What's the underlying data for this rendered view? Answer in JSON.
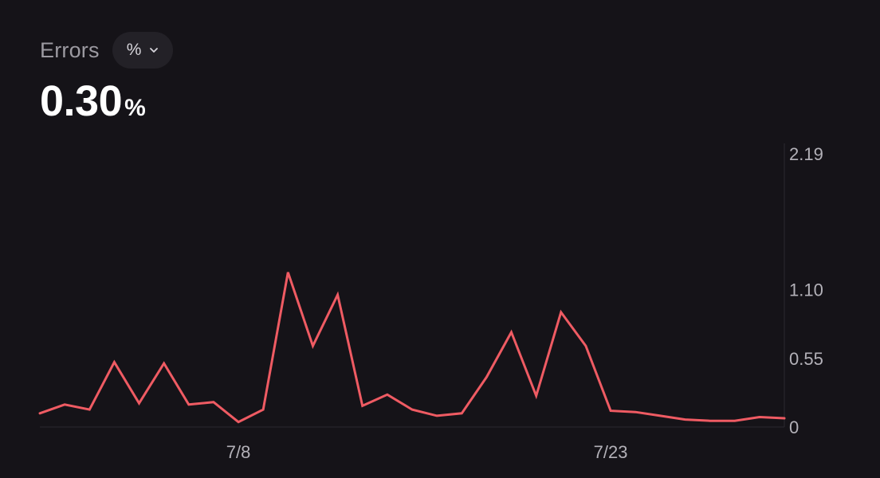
{
  "header": {
    "metric_label": "Errors",
    "unit_selector": "%",
    "value": "0.30",
    "value_unit": "%"
  },
  "colors": {
    "background": "#151318",
    "line": "#ef5b63",
    "axis": "#2c2a30"
  },
  "chart_data": {
    "type": "line",
    "title": "",
    "xlabel": "",
    "ylabel": "",
    "ylim": [
      0,
      2.19
    ],
    "y_ticks": [
      "2.19",
      "1.10",
      "0.55",
      "0"
    ],
    "y_tick_values": [
      2.19,
      1.1,
      0.55,
      0
    ],
    "x_ticks": [
      "7/8",
      "7/23"
    ],
    "x_tick_dates": [
      "7/8",
      "7/23"
    ],
    "x": [
      "6/30",
      "7/1",
      "7/2",
      "7/3",
      "7/4",
      "7/5",
      "7/6",
      "7/7",
      "7/8",
      "7/9",
      "7/10",
      "7/11",
      "7/12",
      "7/13",
      "7/14",
      "7/15",
      "7/16",
      "7/17",
      "7/18",
      "7/19",
      "7/20",
      "7/21",
      "7/22",
      "7/23",
      "7/24",
      "7/25",
      "7/26",
      "7/27",
      "7/28",
      "7/29",
      "7/30"
    ],
    "series": [
      {
        "values": [
          0.11,
          0.18,
          0.14,
          0.52,
          0.19,
          0.51,
          0.18,
          0.2,
          0.04,
          0.14,
          1.24,
          0.65,
          1.06,
          0.17,
          0.26,
          0.14,
          0.09,
          0.11,
          0.4,
          0.76,
          0.25,
          0.92,
          0.65,
          0.13,
          0.12,
          0.09,
          0.06,
          0.05,
          0.05,
          0.08,
          0.07
        ]
      }
    ],
    "grid": false,
    "legend": "none"
  }
}
